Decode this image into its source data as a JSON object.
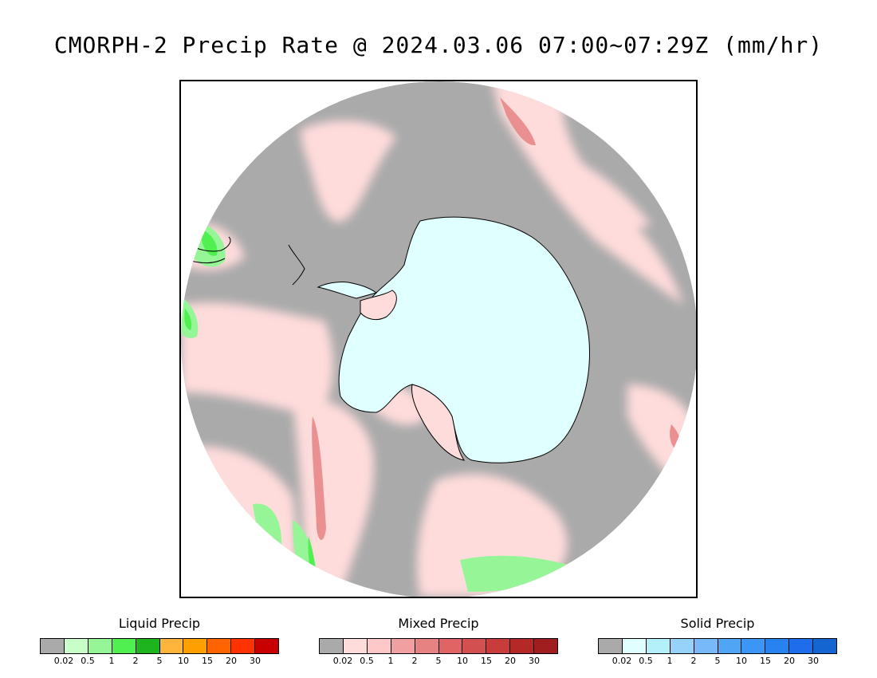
{
  "title": "CMORPH-2 Precip Rate @ 2024.03.06 07:00~07:29Z (mm/hr)",
  "map": {
    "projection": "south-polar-stereographic",
    "background_color": "#aaaaaa",
    "ice_color": "#e0ffff",
    "coast_color": "#000000"
  },
  "legends": [
    {
      "id": "liquid",
      "title": "Liquid Precip",
      "colors": [
        "#aaaaaa",
        "#c8ffc8",
        "#96f596",
        "#50f050",
        "#1eb41e",
        "#ffb43c",
        "#ffa000",
        "#ff6400",
        "#ff3200",
        "#c80000"
      ],
      "ticks": [
        "0.02",
        "0.5",
        "1",
        "2",
        "5",
        "10",
        "15",
        "20",
        "30"
      ]
    },
    {
      "id": "mixed",
      "title": "Mixed Precip",
      "colors": [
        "#aaaaaa",
        "#ffdcdc",
        "#ffc8c8",
        "#f0a0a0",
        "#e68282",
        "#e06464",
        "#d25050",
        "#c83c3c",
        "#b42828",
        "#a01e1e"
      ],
      "ticks": [
        "0.02",
        "0.5",
        "1",
        "2",
        "5",
        "10",
        "15",
        "20",
        "30"
      ]
    },
    {
      "id": "solid",
      "title": "Solid Precip",
      "colors": [
        "#aaaaaa",
        "#e0ffff",
        "#b4f0fa",
        "#96d2fa",
        "#78b9fa",
        "#50a5f5",
        "#3c96f5",
        "#2882f0",
        "#1e6eeb",
        "#1464d2"
      ],
      "ticks": [
        "0.02",
        "0.5",
        "1",
        "2",
        "5",
        "10",
        "15",
        "20",
        "30"
      ]
    }
  ]
}
